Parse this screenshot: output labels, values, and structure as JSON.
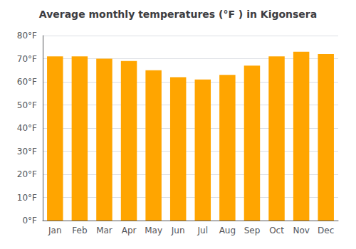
{
  "chart_data": {
    "type": "bar",
    "title": "Average monthly temperatures (°F ) in Kigonsera",
    "categories": [
      "Jan",
      "Feb",
      "Mar",
      "Apr",
      "May",
      "Jun",
      "Jul",
      "Aug",
      "Sep",
      "Oct",
      "Nov",
      "Dec"
    ],
    "values": [
      71,
      71,
      70,
      69,
      65,
      62,
      61,
      63,
      67,
      71,
      73,
      72
    ],
    "color": "#FFA500",
    "ylim": [
      0,
      80
    ],
    "yticks": [
      {
        "value": 0,
        "label": "0°F"
      },
      {
        "value": 10,
        "label": "10°F"
      },
      {
        "value": 20,
        "label": "20°F"
      },
      {
        "value": 30,
        "label": "30°F"
      },
      {
        "value": 40,
        "label": "40°F"
      },
      {
        "value": 50,
        "label": "50°F"
      },
      {
        "value": 60,
        "label": "60°F"
      },
      {
        "value": 70,
        "label": "70°F"
      },
      {
        "value": 80,
        "label": "80°F"
      }
    ],
    "grid": true
  }
}
